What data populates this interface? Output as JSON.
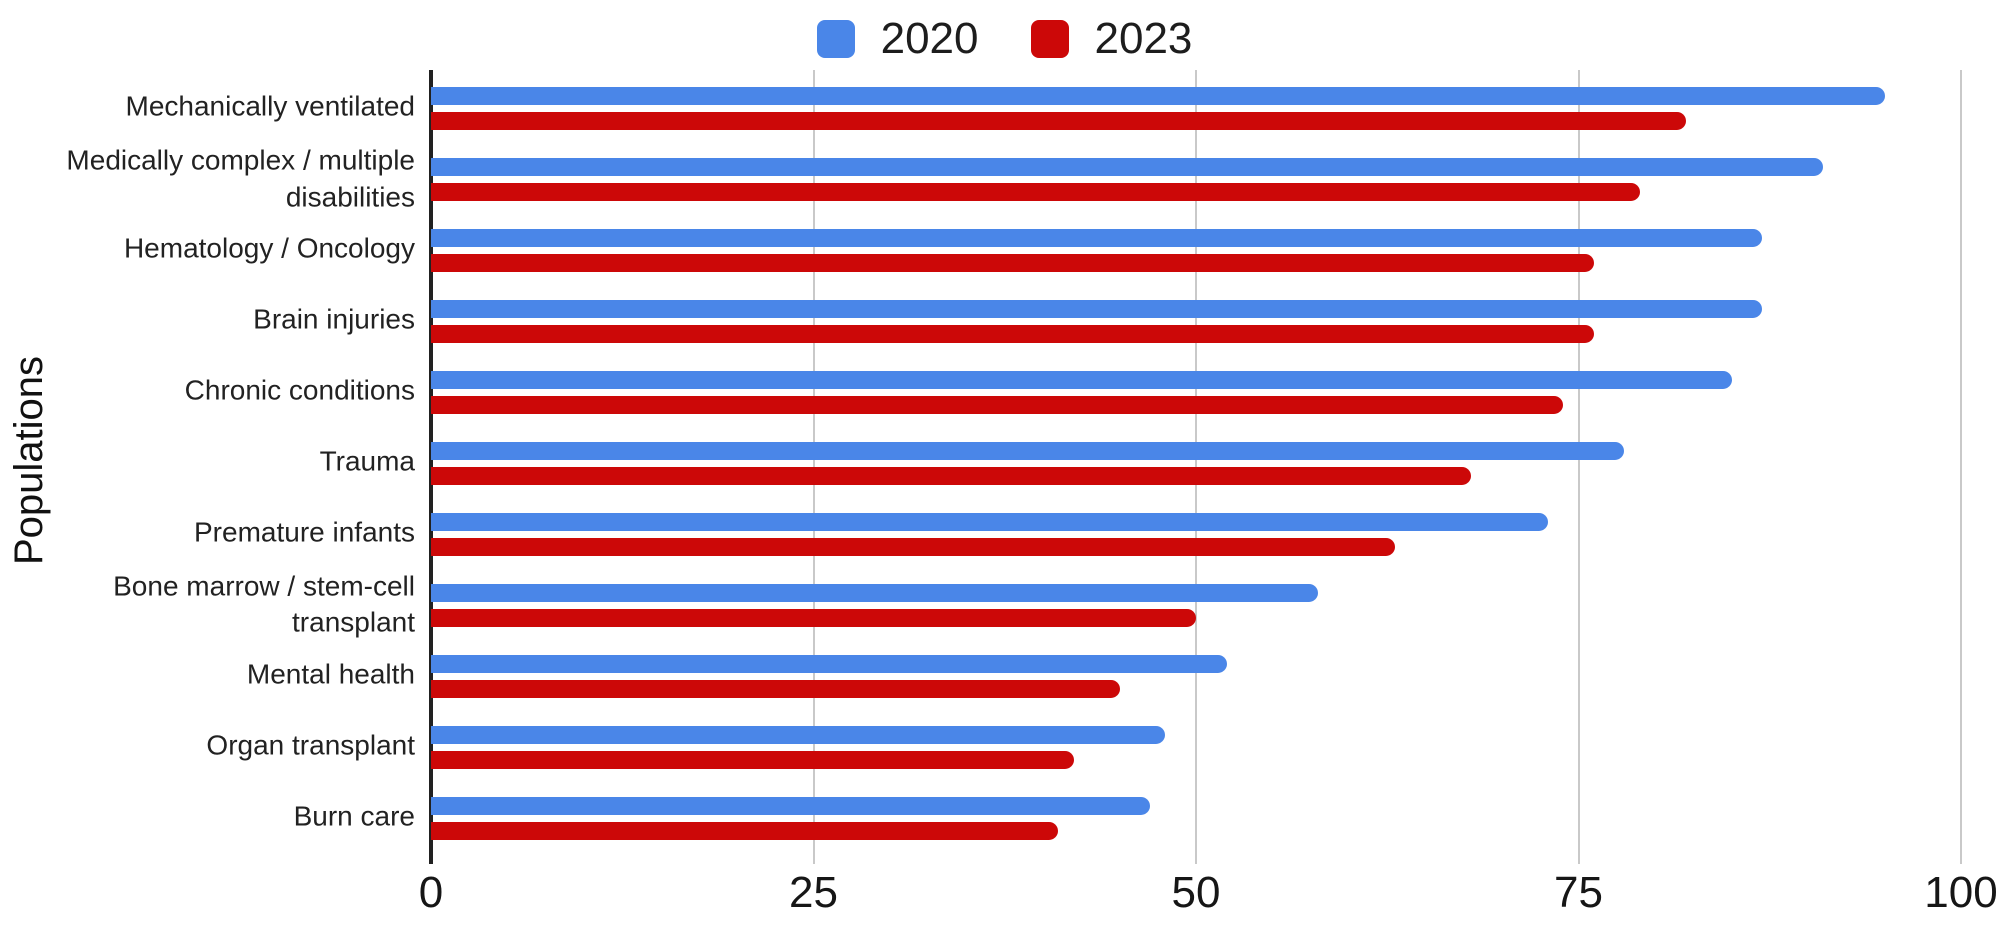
{
  "chart_data": {
    "type": "bar",
    "orientation": "horizontal",
    "ylabel": "Populations",
    "xlim": [
      0,
      100
    ],
    "x_ticks": [
      0,
      25,
      50,
      75,
      100
    ],
    "grid": true,
    "legend_position": "top",
    "categories": [
      "Mechanically ventilated",
      "Medically complex / multiple\ndisabilities",
      "Hematology / Oncology",
      "Brain injuries",
      "Chronic conditions",
      "Trauma",
      "Premature infants",
      "Bone marrow / stem-cell\ntransplant",
      "Mental health",
      "Organ transplant",
      "Burn care"
    ],
    "series": [
      {
        "name": "2020",
        "color": "#4a86e8",
        "values": [
          95,
          91,
          87,
          87,
          85,
          78,
          73,
          58,
          52,
          48,
          47
        ]
      },
      {
        "name": "2023",
        "color": "#cc0808",
        "values": [
          82,
          79,
          76,
          76,
          74,
          68,
          63,
          50,
          45,
          42,
          41
        ]
      }
    ]
  },
  "colors": {
    "axis_line": "#212121",
    "gridline": "#c9c9c9",
    "text": "#1d1d1d",
    "background": "#ffffff"
  }
}
